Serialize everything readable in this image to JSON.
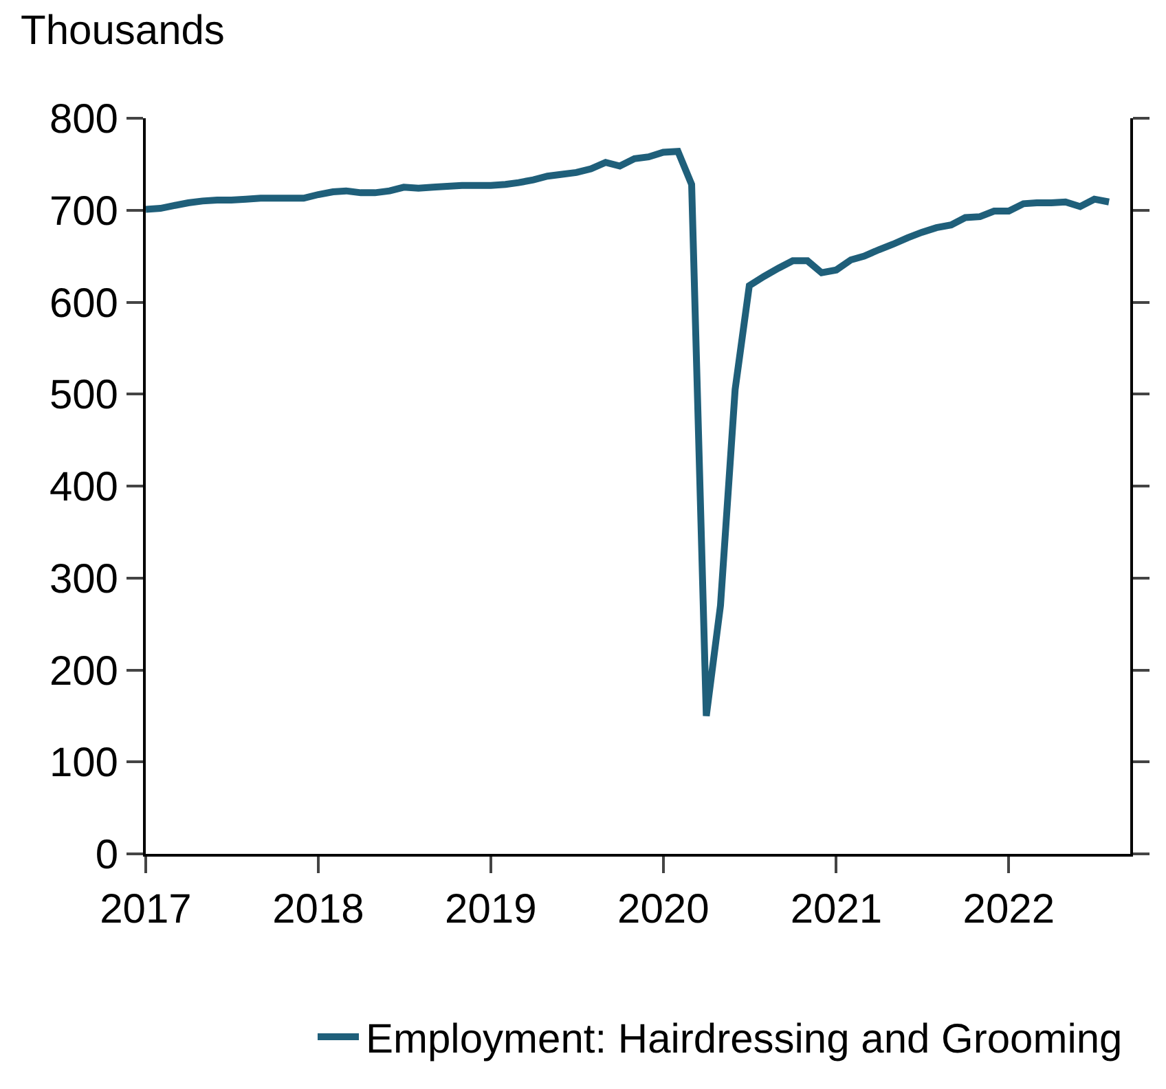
{
  "chart_data": {
    "type": "line",
    "ylabel": "Thousands",
    "x": [
      "2017-01",
      "2017-02",
      "2017-03",
      "2017-04",
      "2017-05",
      "2017-06",
      "2017-07",
      "2017-08",
      "2017-09",
      "2017-10",
      "2017-11",
      "2017-12",
      "2018-01",
      "2018-02",
      "2018-03",
      "2018-04",
      "2018-05",
      "2018-06",
      "2018-07",
      "2018-08",
      "2018-09",
      "2018-10",
      "2018-11",
      "2018-12",
      "2019-01",
      "2019-02",
      "2019-03",
      "2019-04",
      "2019-05",
      "2019-06",
      "2019-07",
      "2019-08",
      "2019-09",
      "2019-10",
      "2019-11",
      "2019-12",
      "2020-01",
      "2020-02",
      "2020-03",
      "2020-04",
      "2020-05",
      "2020-06",
      "2020-07",
      "2020-08",
      "2020-09",
      "2020-10",
      "2020-11",
      "2020-12",
      "2021-01",
      "2021-02",
      "2021-03",
      "2021-04",
      "2021-05",
      "2021-06",
      "2021-07",
      "2021-08",
      "2021-09",
      "2021-10",
      "2021-11",
      "2021-12",
      "2022-01",
      "2022-02",
      "2022-03",
      "2022-04",
      "2022-05",
      "2022-06",
      "2022-07",
      "2022-08"
    ],
    "series": [
      {
        "name": "Employment: Hairdressing and Grooming",
        "color": "#1f5f7a",
        "values": [
          701,
          702,
          705,
          708,
          710,
          711,
          711,
          712,
          713,
          713,
          713,
          713,
          717,
          720,
          721,
          719,
          719,
          721,
          725,
          724,
          725,
          726,
          727,
          727,
          727,
          728,
          730,
          733,
          737,
          739,
          741,
          745,
          752,
          748,
          756,
          758,
          763,
          764,
          728,
          150,
          270,
          505,
          618,
          628,
          637,
          645,
          645,
          632,
          635,
          646,
          650,
          657,
          663,
          670,
          676,
          681,
          684,
          692,
          693,
          699,
          699,
          707,
          708,
          708,
          709,
          704,
          712,
          709
        ]
      }
    ],
    "xlim": [
      "2017-01-01",
      "2022-09-15"
    ],
    "xticks": [
      {
        "value": "2017-01-01",
        "label": "2017"
      },
      {
        "value": "2018-01-01",
        "label": "2018"
      },
      {
        "value": "2019-01-01",
        "label": "2019"
      },
      {
        "value": "2020-01-01",
        "label": "2020"
      },
      {
        "value": "2021-01-01",
        "label": "2021"
      },
      {
        "value": "2022-01-01",
        "label": "2022"
      }
    ],
    "ylim": [
      0,
      800
    ],
    "yticks": [
      0,
      100,
      200,
      300,
      400,
      500,
      600,
      700,
      800
    ],
    "legend": "bottom",
    "marker": "none",
    "line_style": "solid"
  }
}
